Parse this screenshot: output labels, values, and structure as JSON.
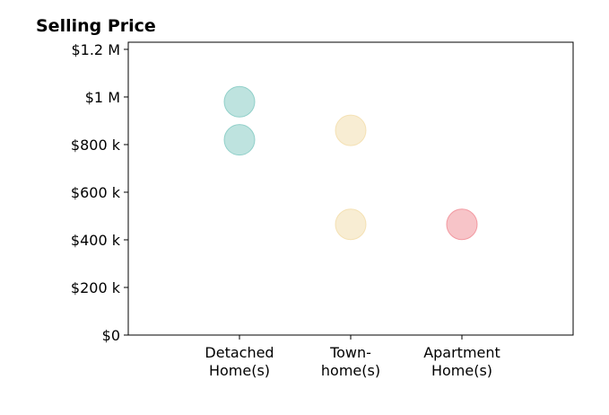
{
  "chart_data": {
    "type": "scatter",
    "title": "Selling Price",
    "categories": [
      "Detached\nHome(s)",
      "Town-\nhome(s)",
      "Apartment\nHome(s)"
    ],
    "ylim": [
      0,
      1230000
    ],
    "y_ticks": [
      {
        "value": 0,
        "label": "$0"
      },
      {
        "value": 200000,
        "label": "$200 k"
      },
      {
        "value": 400000,
        "label": "$400 k"
      },
      {
        "value": 600000,
        "label": "$600 k"
      },
      {
        "value": 800000,
        "label": "$800 k"
      },
      {
        "value": 1000000,
        "label": "$1 M"
      },
      {
        "value": 1200000,
        "label": "$1.2 M"
      }
    ],
    "grid": false,
    "points": [
      {
        "category": 0,
        "y": 980000,
        "color": "#7ec8c0"
      },
      {
        "category": 0,
        "y": 820000,
        "color": "#7ec8c0"
      },
      {
        "category": 1,
        "y": 860000,
        "color": "#f2dca8"
      },
      {
        "category": 1,
        "y": 465000,
        "color": "#f2dca8"
      },
      {
        "category": 2,
        "y": 465000,
        "color": "#f08a92"
      }
    ]
  }
}
